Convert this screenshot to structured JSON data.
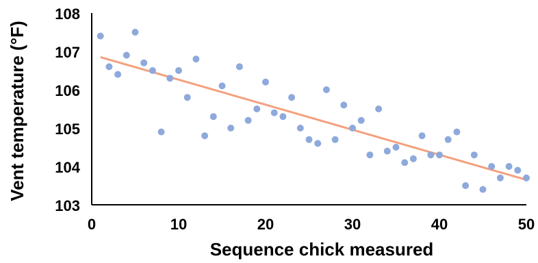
{
  "chart_data": {
    "type": "scatter",
    "title": "",
    "xlabel": "Sequence chick measured",
    "ylabel": "Vent temperature (°F)",
    "xlim": [
      0,
      50
    ],
    "ylim": [
      103,
      108
    ],
    "x_ticks": [
      "0",
      "10",
      "20",
      "30",
      "40",
      "50"
    ],
    "y_ticks": [
      "103",
      "104",
      "105",
      "106",
      "107",
      "108"
    ],
    "grid": false,
    "legend": "none",
    "colors": {
      "points": "#8EA9DB",
      "trendline": "#F4A07E",
      "axis": "#000000"
    },
    "series": [
      {
        "x": [
          1,
          2,
          3,
          4,
          5,
          6,
          7,
          8,
          9,
          10,
          11,
          12,
          13,
          14,
          15,
          16,
          17,
          18,
          19,
          20,
          21,
          22,
          23,
          24,
          25,
          26,
          27,
          28,
          29,
          30,
          31,
          32,
          33,
          34,
          35,
          36,
          37,
          38,
          39,
          40,
          41,
          42,
          43,
          44,
          45,
          46,
          47,
          48,
          49,
          50
        ],
        "y": [
          107.4,
          106.6,
          106.4,
          106.9,
          107.5,
          106.7,
          106.5,
          104.9,
          106.3,
          106.5,
          105.8,
          106.8,
          104.8,
          105.3,
          106.1,
          105.0,
          106.6,
          105.2,
          105.5,
          106.2,
          105.4,
          105.3,
          105.8,
          105.0,
          104.7,
          104.6,
          106.0,
          104.7,
          105.6,
          105.0,
          105.2,
          104.3,
          105.5,
          104.4,
          104.5,
          104.1,
          104.2,
          104.8,
          104.3,
          104.3,
          104.7,
          104.9,
          103.5,
          104.3,
          103.4,
          104.0,
          103.7,
          104.0,
          103.9,
          103.7
        ]
      }
    ],
    "trendline": {
      "type": "linear",
      "x": [
        1,
        50
      ],
      "y": [
        106.85,
        103.65
      ]
    }
  }
}
